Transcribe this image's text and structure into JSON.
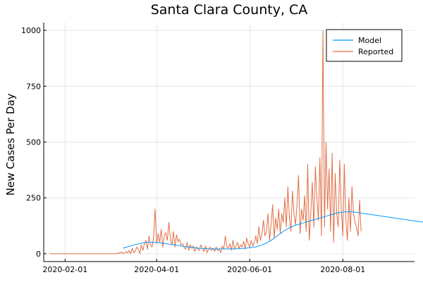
{
  "chart_data": {
    "type": "line",
    "title": "Santa Clara County, CA",
    "xlabel": "",
    "ylabel": "New Cases Per Day",
    "x_start": "2020-01-22",
    "x_end": "2020-09-14",
    "xlim": [
      "2020-01-18",
      "2020-09-17"
    ],
    "ylim": [
      -35,
      1035
    ],
    "x_ticks": [
      "2020-02-01",
      "2020-04-01",
      "2020-06-01",
      "2020-08-01"
    ],
    "y_ticks": [
      0,
      250,
      500,
      750,
      1000
    ],
    "grid": true,
    "legend": {
      "position": "top-right",
      "entries": [
        "Model",
        "Reported"
      ]
    },
    "colors": {
      "Model": "#009af9",
      "Reported": "#e26f46"
    },
    "series": [
      {
        "name": "Model",
        "start": "2020-03-10",
        "values": [
          25,
          27,
          29,
          31,
          33,
          35,
          37,
          39,
          41,
          42,
          44,
          45,
          47,
          48,
          49,
          50,
          51,
          52,
          52,
          52,
          52,
          51,
          51,
          50,
          49,
          48,
          47,
          46,
          45,
          44,
          43,
          42,
          41,
          40,
          39,
          38,
          37,
          36,
          35,
          34,
          33,
          32,
          31,
          30,
          29,
          28,
          27,
          27,
          26,
          25,
          25,
          24,
          24,
          23,
          23,
          23,
          22,
          22,
          22,
          22,
          22,
          22,
          22,
          22,
          22,
          22,
          22,
          22,
          22,
          22,
          22,
          22,
          22,
          22,
          22,
          23,
          23,
          23,
          24,
          24,
          25,
          25,
          26,
          27,
          28,
          29,
          30,
          31,
          33,
          35,
          37,
          39,
          42,
          45,
          48,
          52,
          56,
          60,
          65,
          70,
          75,
          80,
          85,
          90,
          95,
          100,
          104,
          108,
          112,
          116,
          119,
          122,
          125,
          128,
          130,
          132,
          134,
          136,
          138,
          140,
          142,
          144,
          146,
          148,
          150,
          152,
          154,
          156,
          158,
          160,
          162,
          164,
          166,
          168,
          170,
          172,
          174,
          176,
          178,
          180,
          182,
          183,
          184,
          185,
          186,
          187,
          188,
          188,
          188,
          188,
          188,
          187,
          186,
          185,
          184,
          183,
          182,
          181,
          180,
          179,
          178,
          177,
          176,
          175,
          174,
          173,
          172,
          171,
          170,
          169,
          168,
          167,
          166,
          165,
          164,
          163,
          162,
          161,
          160,
          159,
          158,
          157,
          156,
          155,
          154,
          153,
          152,
          151,
          150,
          149,
          148,
          147,
          146,
          145,
          144,
          143,
          142,
          141,
          140,
          139,
          138,
          137,
          136,
          135,
          134,
          133,
          132,
          131,
          130,
          129,
          128,
          127,
          126,
          125,
          124,
          123,
          122,
          121,
          120,
          119,
          118,
          117,
          116,
          115
        ]
      },
      {
        "name": "Reported",
        "start": "2020-01-22",
        "values": [
          0,
          0,
          0,
          0,
          0,
          0,
          0,
          0,
          0,
          0,
          0,
          0,
          0,
          0,
          0,
          0,
          0,
          0,
          0,
          0,
          0,
          0,
          0,
          0,
          0,
          0,
          0,
          0,
          0,
          0,
          0,
          0,
          0,
          0,
          0,
          0,
          0,
          0,
          0,
          0,
          0,
          0,
          0,
          0,
          0,
          5,
          2,
          8,
          0,
          4,
          10,
          3,
          15,
          0,
          25,
          5,
          10,
          30,
          20,
          0,
          40,
          15,
          45,
          60,
          20,
          80,
          40,
          30,
          70,
          200,
          45,
          90,
          50,
          110,
          30,
          80,
          95,
          60,
          140,
          70,
          40,
          100,
          30,
          85,
          55,
          65,
          40,
          45,
          30,
          20,
          50,
          15,
          40,
          25,
          35,
          10,
          30,
          20,
          15,
          40,
          25,
          10,
          35,
          5,
          20,
          30,
          15,
          25,
          10,
          30,
          15,
          20,
          5,
          35,
          20,
          80,
          30,
          25,
          45,
          15,
          60,
          20,
          35,
          50,
          25,
          40,
          30,
          55,
          20,
          70,
          45,
          30,
          60,
          35,
          50,
          80,
          45,
          120,
          60,
          90,
          150,
          80,
          100,
          180,
          60,
          130,
          220,
          70,
          160,
          110,
          200,
          90,
          180,
          140,
          250,
          120,
          300,
          160,
          100,
          280,
          180,
          130,
          220,
          350,
          90,
          200,
          150,
          260,
          100,
          400,
          60,
          180,
          320,
          120,
          390,
          250,
          150,
          430,
          80,
          1000,
          120,
          500,
          200,
          380,
          100,
          450,
          50,
          360,
          180,
          120,
          420,
          200,
          80,
          400,
          150,
          60,
          250,
          100,
          300,
          180,
          140,
          120,
          80,
          240,
          100
        ]
      }
    ]
  }
}
